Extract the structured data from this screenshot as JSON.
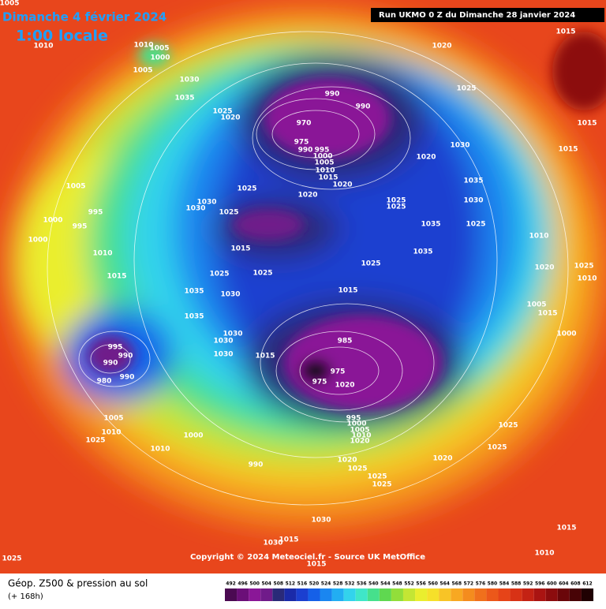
{
  "header": {
    "title": "Dimanche 4 février 2024",
    "time": "1:00 locale",
    "run": "Run UKMO 0 Z du Dimanche 28 janvier 2024"
  },
  "copyright": "Copyright © 2024 Meteociel.fr - Source UK MetOffice",
  "footer": {
    "field": "Géop. Z500 & pression au sol",
    "lead": "(+ 168h)"
  },
  "isobar_labels": [
    1005,
    1010,
    1010,
    1005,
    1000,
    1005,
    1030,
    1035,
    1025,
    1020,
    1020,
    1015,
    1025,
    990,
    990,
    970,
    975,
    990,
    995,
    1000,
    1005,
    1010,
    1015,
    1020,
    1020,
    1030,
    1015,
    1015,
    1005,
    995,
    1000,
    995,
    1000,
    1010,
    1015,
    1025,
    1030,
    1030,
    1025,
    1020,
    1025,
    1025,
    1035,
    1030,
    1035,
    1025,
    1035,
    1025,
    1015,
    1025,
    1025,
    1035,
    1030,
    1015,
    1035,
    1030,
    1030,
    1030,
    1015,
    985,
    995,
    990,
    990,
    990,
    980,
    975,
    975,
    1020,
    1010,
    1020,
    1025,
    1010,
    1005,
    1015,
    1000,
    1005,
    1010,
    1025,
    1000,
    1010,
    990,
    995,
    1000,
    1005,
    1010,
    1020,
    1025,
    1025,
    1020,
    1020,
    1025,
    1025,
    1025,
    1030,
    1030,
    1015,
    1015,
    1010,
    1025,
    1015
  ],
  "colorbar": {
    "ticks": [
      492,
      496,
      500,
      504,
      508,
      512,
      516,
      520,
      524,
      528,
      532,
      536,
      540,
      544,
      548,
      552,
      556,
      560,
      564,
      568,
      572,
      576,
      580,
      584,
      588,
      592,
      596,
      600,
      604,
      608,
      612
    ],
    "colors": [
      "#4b0a52",
      "#6b0f78",
      "#8a1797",
      "#701b8a",
      "#2a2a78",
      "#1a2aa8",
      "#1b3fd0",
      "#1560e8",
      "#1a86f0",
      "#22aef2",
      "#33d3ec",
      "#3fe6c8",
      "#46e08c",
      "#5fd850",
      "#92de3a",
      "#c4e634",
      "#eaee2e",
      "#f6e02a",
      "#f8c426",
      "#f8a822",
      "#f48c1e",
      "#f0701c",
      "#ec581a",
      "#e64418",
      "#d83216",
      "#c42214",
      "#aa1412",
      "#8c0c0e",
      "#6a060a",
      "#480306",
      "#200102"
    ]
  }
}
